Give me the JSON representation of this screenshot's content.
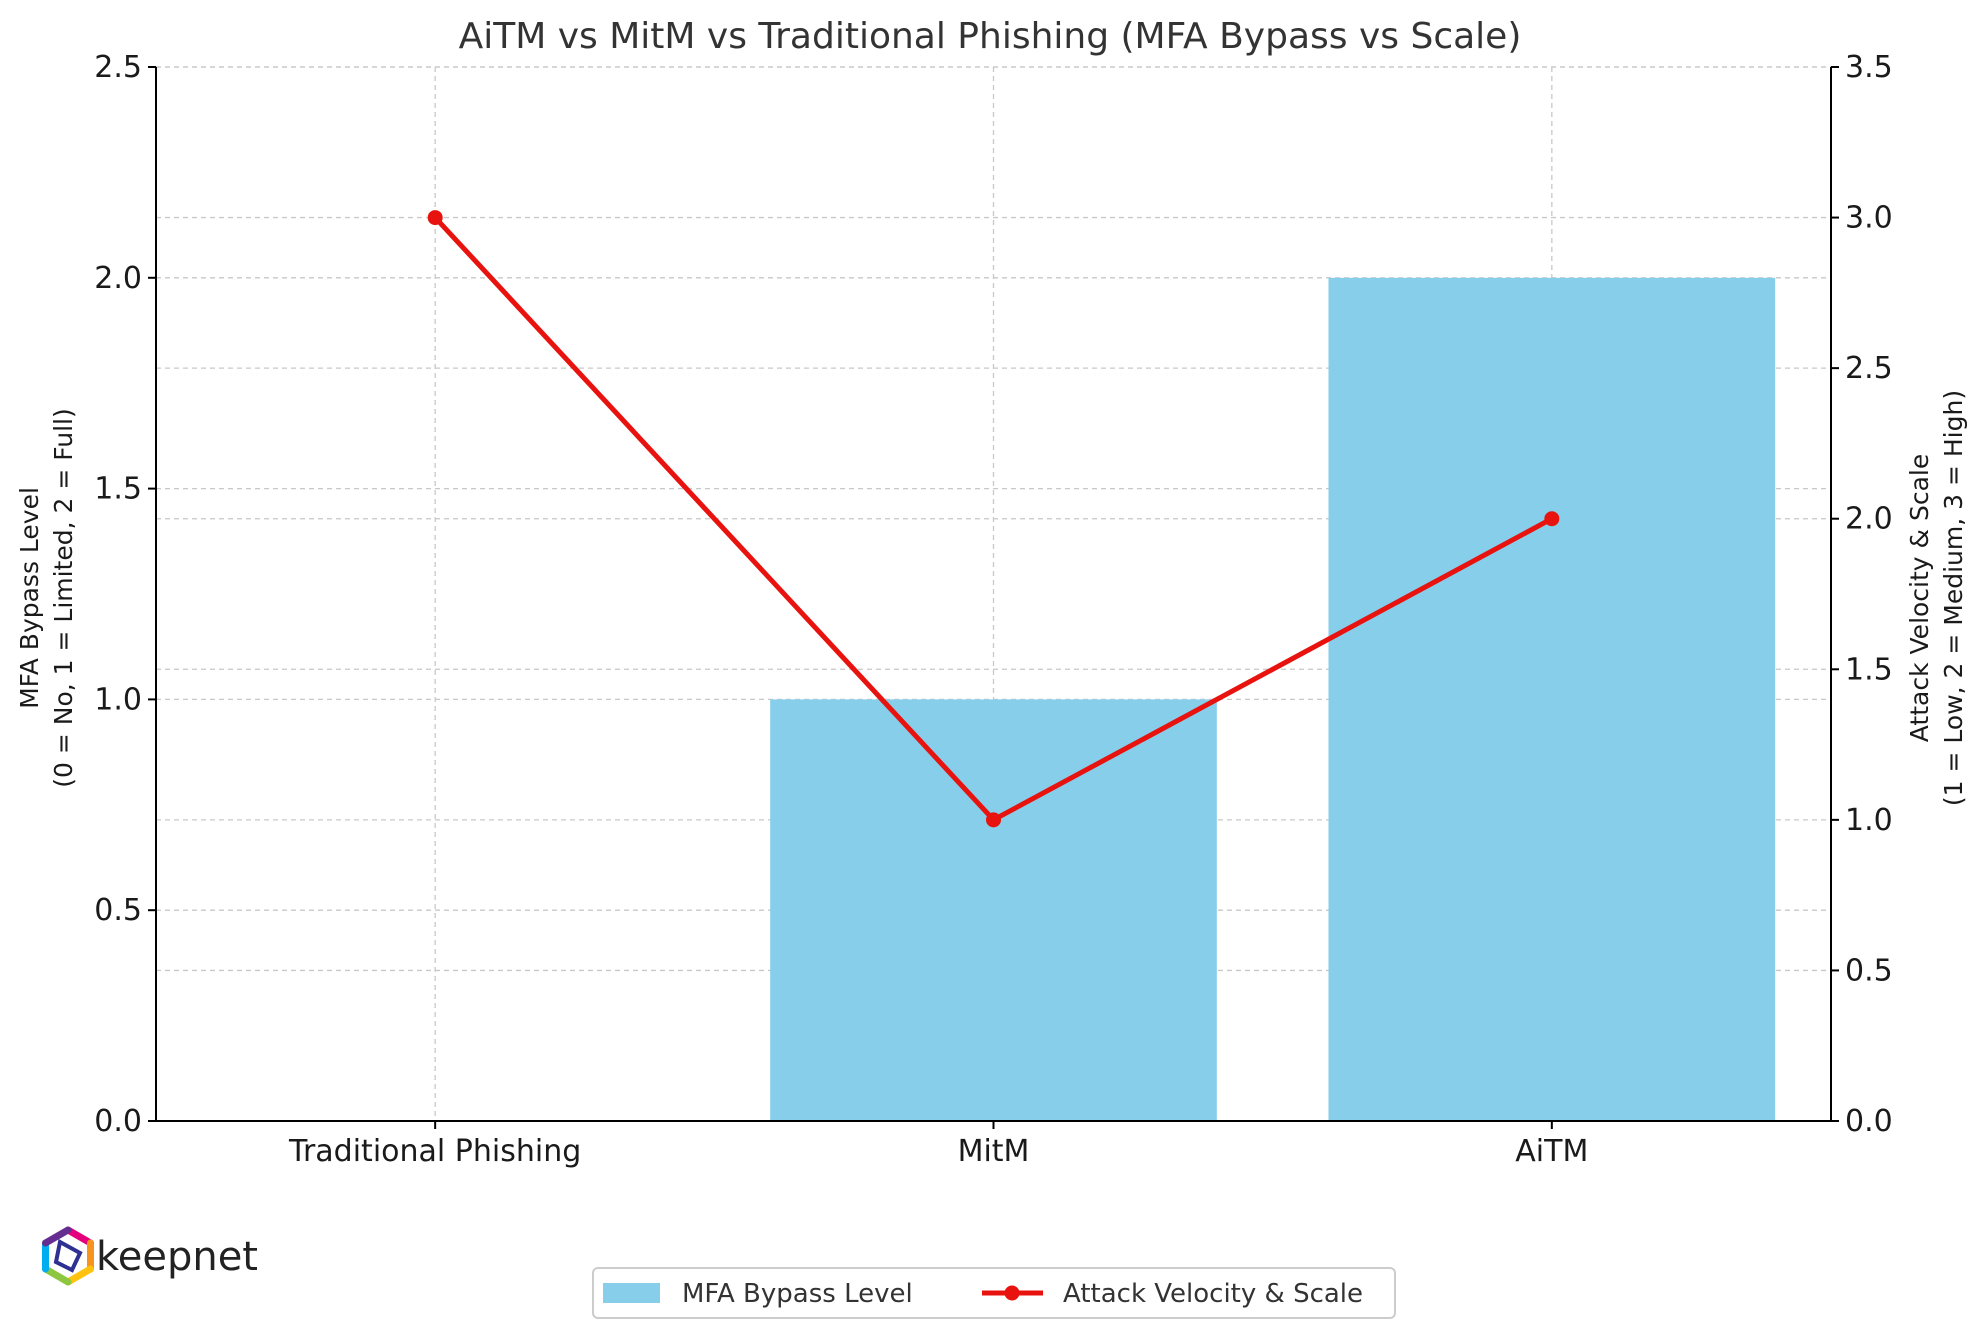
{
  "chart_data": {
    "type": "bar",
    "title": "AiTM vs MitM vs Traditional Phishing (MFA Bypass vs Scale)",
    "categories": [
      "Traditional Phishing",
      "MitM",
      "AiTM"
    ],
    "y_left": {
      "label_line1": "MFA Bypass Level",
      "label_line2": "(0 = No, 1 = Limited, 2 = Full)",
      "ylim": [
        0,
        2.5
      ],
      "ticks": [
        "0.0",
        "0.5",
        "1.0",
        "1.5",
        "2.0",
        "2.5"
      ]
    },
    "y_right": {
      "label_line1": "Attack Velocity & Scale",
      "label_line2": "(1 = Low, 2 = Medium, 3 = High)",
      "ylim": [
        0,
        3.5
      ],
      "ticks": [
        "0.0",
        "0.5",
        "1.0",
        "1.5",
        "2.0",
        "2.5",
        "3.0",
        "3.5"
      ]
    },
    "series": [
      {
        "name": "MFA Bypass Level",
        "type": "bar",
        "axis": "left",
        "color": "#87CEEB",
        "values": [
          0,
          1,
          2
        ]
      },
      {
        "name": "Attack Velocity & Scale",
        "type": "line",
        "axis": "right",
        "color": "#E8130F",
        "values": [
          3,
          1,
          2
        ]
      }
    ],
    "grid": true,
    "legend_position": "bottom-center"
  },
  "logo": {
    "text": "keepnet",
    "icon": "hexagon-logo-icon"
  }
}
